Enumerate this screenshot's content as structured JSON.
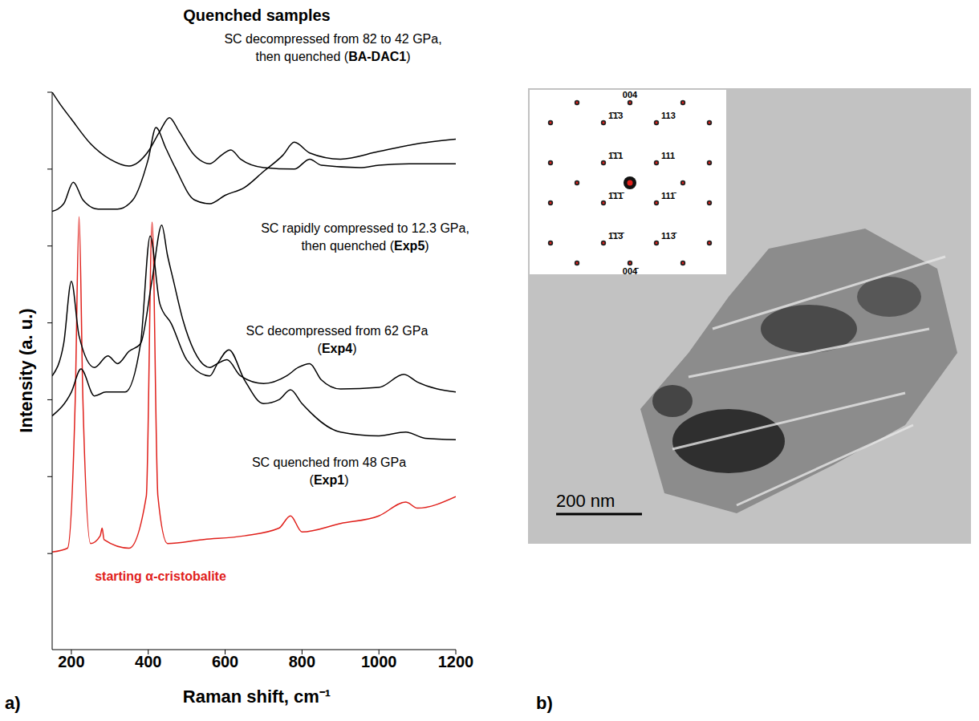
{
  "chart_data": {
    "type": "line",
    "panel": "a)",
    "title": "Quenched samples",
    "x_label": "Raman shift, cm⁻¹",
    "y_label": "Intensity (a. u.)",
    "xlim": [
      150,
      1200
    ],
    "xticks": [
      200,
      400,
      600,
      800,
      1000,
      1200
    ],
    "ylim": [
      -1.25,
      6
    ],
    "yticks": [
      0,
      1,
      2,
      3,
      4,
      5,
      6
    ],
    "tick_labels": "x",
    "grid": false,
    "series": [
      {
        "name": "starting α-cristobalite",
        "color": "#e0201b",
        "label": [
          "starting α-cristobalite"
        ],
        "x": [
          150,
          190,
          210,
          220,
          230,
          250,
          275,
          280,
          285,
          350,
          395,
          410,
          425,
          450,
          540,
          650,
          740,
          770,
          800,
          900,
          1000,
          1070,
          1100,
          1200
        ],
        "values": [
          0.02,
          0.07,
          2.0,
          4.38,
          2.0,
          0.13,
          0.23,
          0.33,
          0.18,
          0.07,
          0.75,
          4.31,
          0.75,
          0.13,
          0.18,
          0.23,
          0.33,
          0.49,
          0.28,
          0.39,
          0.49,
          0.67,
          0.59,
          0.74
        ]
      },
      {
        "name": "Exp1",
        "color": "#000000",
        "label": [
          "SC quenched from 48 GPa",
          "(Exp1)"
        ],
        "x": [
          150,
          200,
          225,
          260,
          290,
          340,
          380,
          405,
          430,
          460,
          500,
          560,
          580,
          610,
          650,
          700,
          740,
          770,
          800,
          900,
          1000,
          1070,
          1120,
          1200
        ],
        "values": [
          1.79,
          2.1,
          2.4,
          2.05,
          2.1,
          2.1,
          2.73,
          4.13,
          3.25,
          2.99,
          2.52,
          2.31,
          2.47,
          2.65,
          2.26,
          1.95,
          2.0,
          2.13,
          1.95,
          1.58,
          1.53,
          1.58,
          1.5,
          1.48
        ]
      },
      {
        "name": "Exp4",
        "color": "#000000",
        "label": [
          "SC decompressed from 62 GPa",
          "(Exp4)"
        ],
        "x": [
          150,
          180,
          200,
          220,
          260,
          295,
          320,
          350,
          380,
          410,
          435,
          450,
          465,
          490,
          520,
          560,
          580,
          605,
          640,
          700,
          760,
          790,
          820,
          850,
          900,
          1000,
          1065,
          1100,
          1200
        ],
        "values": [
          2.31,
          2.73,
          3.54,
          2.83,
          2.42,
          2.57,
          2.47,
          2.63,
          2.73,
          3.56,
          4.27,
          3.88,
          3.56,
          3.04,
          2.63,
          2.42,
          2.47,
          2.52,
          2.31,
          2.21,
          2.31,
          2.42,
          2.47,
          2.26,
          2.14,
          2.16,
          2.33,
          2.23,
          2.1
        ]
      },
      {
        "name": "Exp5",
        "color": "#000000",
        "label": [
          "SC rapidly compressed to 12.3 GPa,",
          "then quenched (Exp5)"
        ],
        "x": [
          150,
          180,
          205,
          230,
          270,
          320,
          360,
          400,
          420,
          445,
          470,
          520,
          560,
          600,
          650,
          700,
          750,
          780,
          820,
          900,
          1000,
          1100,
          1200
        ],
        "values": [
          4.45,
          4.55,
          4.83,
          4.6,
          4.48,
          4.48,
          4.6,
          5.13,
          5.54,
          5.28,
          5.02,
          4.6,
          4.55,
          4.66,
          4.76,
          4.97,
          5.18,
          5.35,
          5.21,
          5.13,
          5.23,
          5.33,
          5.39
        ]
      },
      {
        "name": "BA-DAC1",
        "color": "#000000",
        "label": [
          "SC decompressed from 82 to 42 GPa,",
          "then quenched (BA-DAC1)"
        ],
        "x": [
          150,
          170,
          200,
          250,
          300,
          350,
          400,
          430,
          455,
          480,
          520,
          560,
          590,
          615,
          640,
          700,
          780,
          820,
          850,
          950,
          1000,
          1100,
          1200
        ],
        "values": [
          6.0,
          5.85,
          5.65,
          5.33,
          5.13,
          5.04,
          5.23,
          5.49,
          5.67,
          5.49,
          5.18,
          5.07,
          5.18,
          5.25,
          5.13,
          5.02,
          5.0,
          5.13,
          5.05,
          5.02,
          5.05,
          5.07,
          5.07
        ]
      }
    ]
  },
  "image_panel": {
    "panel": "b)",
    "scale_bar": "200 nm",
    "diffraction_spots": [
      {
        "label": "004",
        "hkl": [
          0,
          0,
          4
        ]
      },
      {
        "label": "1̄1̄3",
        "hkl": [
          -1,
          -1,
          3
        ]
      },
      {
        "label": "113",
        "hkl": [
          1,
          1,
          3
        ]
      },
      {
        "label": "1̄1̄1",
        "hkl": [
          -1,
          -1,
          1
        ]
      },
      {
        "label": "111",
        "hkl": [
          1,
          1,
          1
        ]
      },
      {
        "label": "1̄1̄1̄",
        "hkl": [
          -1,
          -1,
          -1
        ]
      },
      {
        "label": "111̄",
        "hkl": [
          1,
          1,
          -1
        ]
      },
      {
        "label": "1̄1̄3̄",
        "hkl": [
          -1,
          -1,
          -3
        ]
      },
      {
        "label": "113̄",
        "hkl": [
          1,
          1,
          -3
        ]
      },
      {
        "label": "004̄",
        "hkl": [
          0,
          0,
          -4
        ]
      }
    ]
  }
}
